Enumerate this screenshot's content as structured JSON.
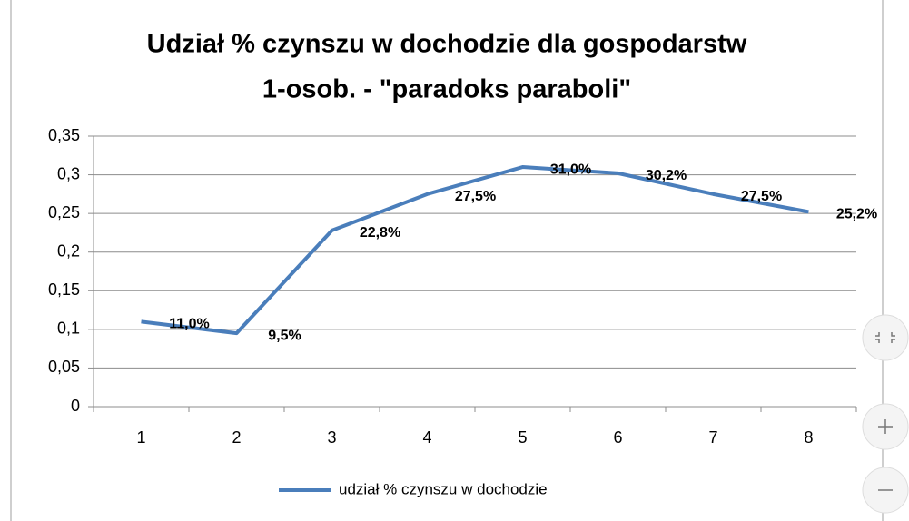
{
  "chart_data": {
    "type": "line",
    "title": [
      "Udział % czynszu w dochodzie dla gospodarstw",
      "1-osob. - \"paradoks paraboli\""
    ],
    "categories": [
      "1",
      "2",
      "3",
      "4",
      "5",
      "6",
      "7",
      "8"
    ],
    "series": [
      {
        "name": "udział % czynszu w dochodzie",
        "color": "#4a7ebb",
        "values": [
          0.11,
          0.095,
          0.228,
          0.275,
          0.31,
          0.302,
          0.275,
          0.252
        ],
        "value_labels": [
          "11,0%",
          "9,5%",
          "22,8%",
          "27,5%",
          "31,0%",
          "30,2%",
          "27,5%",
          "25,2%"
        ]
      }
    ],
    "ylim": [
      0,
      0.35
    ],
    "yticks": [
      0,
      {
        "value": 0.05,
        "label": "0,05"
      },
      {
        "value": 0.1,
        "label": "0,1"
      },
      {
        "value": 0.15,
        "label": "0,15"
      },
      {
        "value": 0.2,
        "label": "0,2"
      },
      {
        "value": 0.25,
        "label": "0,25"
      },
      {
        "value": 0.3,
        "label": "0,3"
      },
      {
        "value": 0.35,
        "label": "0,35"
      }
    ],
    "grid": true,
    "legend": "bottom"
  }
}
